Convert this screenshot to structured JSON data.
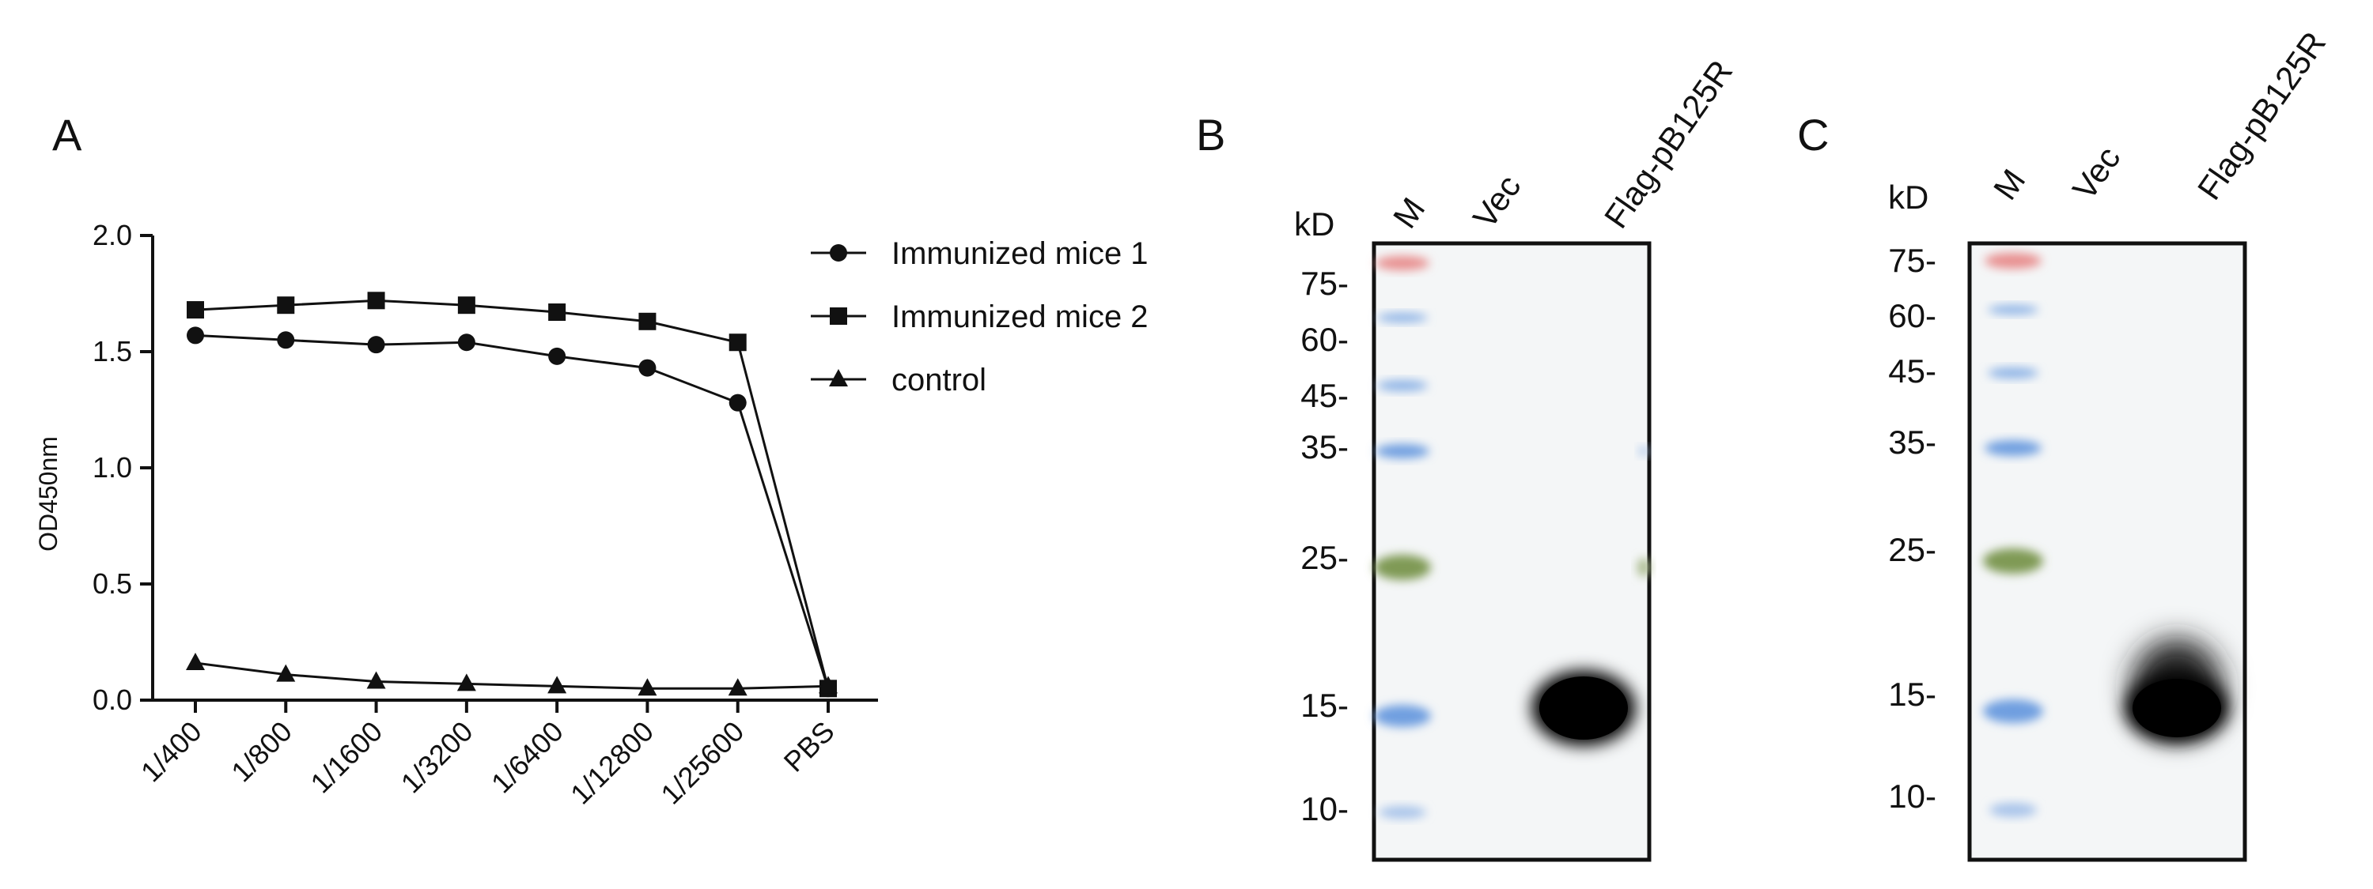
{
  "panels": {
    "A": "A",
    "B": "B",
    "C": "C"
  },
  "chart_data": {
    "type": "line",
    "categories": [
      "1/400",
      "1/800",
      "1/1600",
      "1/3200",
      "1/6400",
      "1/12800",
      "1/25600",
      "PBS"
    ],
    "ylabel": "OD450nm",
    "xlabel": "",
    "ylim": [
      0,
      2.0
    ],
    "yticks": [
      "0.0",
      "0.5",
      "1.0",
      "1.5",
      "2.0"
    ],
    "grid": false,
    "legend_position": "top-right",
    "series": [
      {
        "name": "Immunized mice 1",
        "marker": "circle",
        "values": [
          1.57,
          1.55,
          1.53,
          1.54,
          1.48,
          1.43,
          1.28,
          0.05
        ]
      },
      {
        "name": "Immunized mice 2",
        "marker": "square",
        "values": [
          1.68,
          1.7,
          1.72,
          1.7,
          1.67,
          1.63,
          1.54,
          0.05
        ]
      },
      {
        "name": "control",
        "marker": "triangle",
        "values": [
          0.16,
          0.11,
          0.08,
          0.07,
          0.06,
          0.05,
          0.05,
          0.06
        ]
      }
    ]
  },
  "blots": {
    "B": {
      "unit": "kD",
      "lanes": [
        "M",
        "Vec",
        "Flag-pB125R"
      ],
      "markers": [
        {
          "label": "75-",
          "kd": 75
        },
        {
          "label": "60-",
          "kd": 60
        },
        {
          "label": "45-",
          "kd": 45
        },
        {
          "label": "35-",
          "kd": 35
        },
        {
          "label": "25-",
          "kd": 25
        },
        {
          "label": "15-",
          "kd": 15
        },
        {
          "label": "10-",
          "kd": 10
        }
      ]
    },
    "C": {
      "unit": "kD",
      "lanes": [
        "M",
        "Vec",
        "Flag-pB125R"
      ],
      "markers": [
        {
          "label": "75-",
          "kd": 75
        },
        {
          "label": "60-",
          "kd": 60
        },
        {
          "label": "45-",
          "kd": 45
        },
        {
          "label": "35-",
          "kd": 35
        },
        {
          "label": "25-",
          "kd": 25
        },
        {
          "label": "15-",
          "kd": 15
        },
        {
          "label": "10-",
          "kd": 10
        }
      ]
    }
  }
}
